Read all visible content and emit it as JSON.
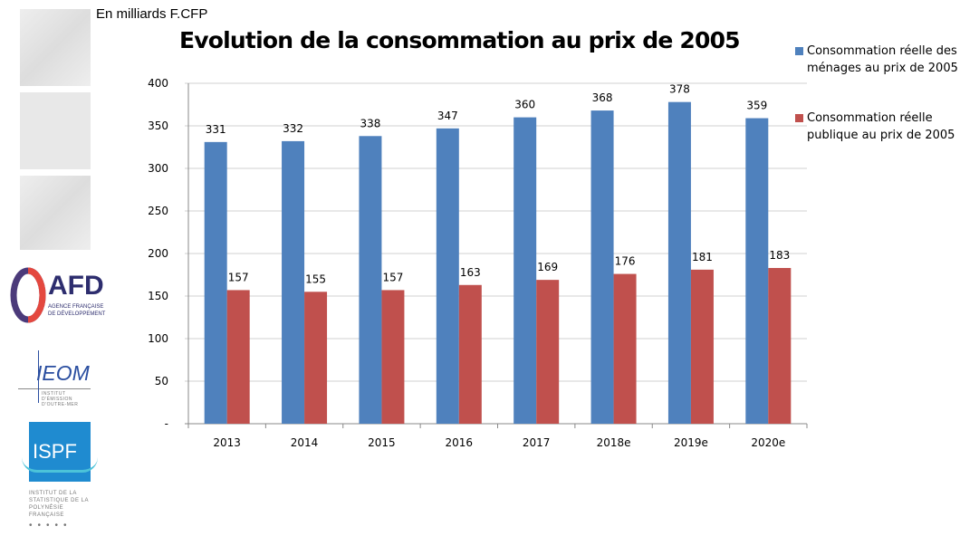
{
  "unit_label": "En milliards F.CFP",
  "logos": {
    "afd": "AFD",
    "afd_sub": "AGENCE FRANÇAISE DE DÉVELOPPEMENT",
    "ieom": "IEOM",
    "ieom_sub": "INSTITUT D'ÉMISSION D'OUTRE-MER",
    "ispf": "ISPF",
    "ispf_sub": "INSTITUT DE LA STATISTIQUE DE LA POLYNÉSIE FRANÇAISE"
  },
  "chart_data": {
    "type": "bar",
    "title": "Evolution de la consommation au prix de 2005",
    "categories": [
      "2013",
      "2014",
      "2015",
      "2016",
      "2017",
      "2018e",
      "2019e",
      "2020e"
    ],
    "series": [
      {
        "name": "Consommation réelle des ménages  au prix de 2005",
        "color": "#4f81bd",
        "values": [
          331,
          332,
          338,
          347,
          360,
          368,
          378,
          359
        ]
      },
      {
        "name": "Consommation  réelle publique au prix de 2005",
        "color": "#c0504d",
        "values": [
          157,
          155,
          157,
          163,
          169,
          176,
          181,
          183
        ]
      }
    ],
    "ylim": [
      0,
      400
    ],
    "yticks": [
      0,
      50,
      100,
      150,
      200,
      250,
      300,
      350,
      400
    ],
    "ytick_labels": [
      "-",
      "50",
      "100",
      "150",
      "200",
      "250",
      "300",
      "350",
      "400"
    ],
    "grid": true,
    "legend": "right"
  }
}
